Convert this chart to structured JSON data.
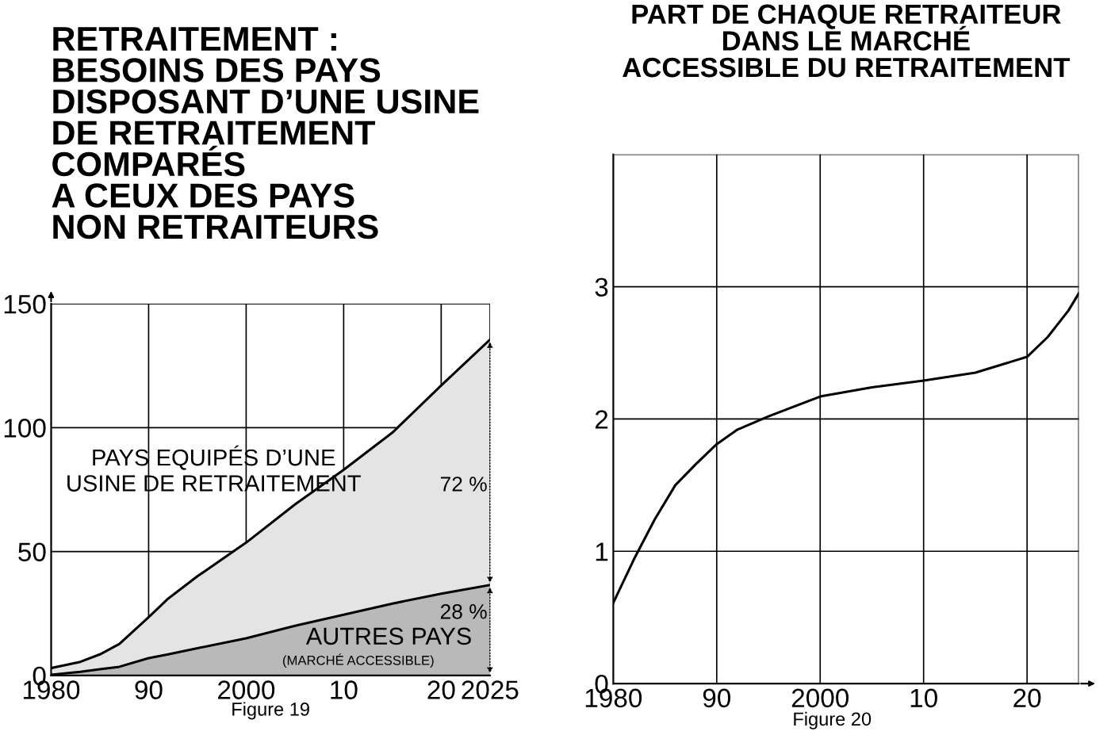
{
  "chart_data": [
    {
      "type": "area",
      "title": "RETRAITEMENT :\nBESOINS DES PAYS\nDISPOSANT D’UNE USINE\nDE RETRAITEMENT\nCOMPARÉS\nA CEUX DES PAYS\nNON RETRAITEURS",
      "x": [
        1980,
        1983,
        1985,
        1987,
        1990,
        1992,
        1995,
        2000,
        2005,
        2010,
        2015,
        2020,
        2025
      ],
      "series": [
        {
          "color": "#e4e4e4",
          "values": [
            3,
            5.5,
            8.5,
            12.7,
            23.5,
            31,
            40,
            53.6,
            69,
            83,
            98,
            117,
            135.5
          ]
        },
        {
          "color": "#b9b9b9",
          "values": [
            0.3,
            1.5,
            2.5,
            3.5,
            7,
            8.5,
            11,
            15,
            20,
            24.5,
            29,
            33,
            36.5
          ]
        }
      ],
      "xlim": [
        1980,
        2025
      ],
      "ylim": [
        0,
        150
      ],
      "xticks": [
        {
          "value": 1980,
          "label": "1980"
        },
        {
          "value": 1990,
          "label": "90"
        },
        {
          "value": 2000,
          "label": "2000"
        },
        {
          "value": 2010,
          "label": "10"
        },
        {
          "value": 2020,
          "label": "20"
        },
        {
          "value": 2025,
          "label": "2025"
        }
      ],
      "yticks": [
        0,
        50,
        100,
        150
      ],
      "grid": true,
      "annotations": [
        "PAYS EQUIPÉS D’UNE\nUSINE DE RETRAITEMENT",
        "72 %",
        "28 %",
        "AUTRES PAYS",
        "(MARCHÉ ACCESSIBLE)",
        "Figure 19"
      ]
    },
    {
      "type": "line",
      "title": "PART DE CHAQUE RETRAITEUR\nDANS LE MARCHÉ\nACCESSIBLE DU RETRAITEMENT",
      "x": [
        1980,
        1982,
        1984,
        1986,
        1988,
        1990,
        1992,
        1995,
        2000,
        2005,
        2010,
        2015,
        2020,
        2022,
        2024,
        2025
      ],
      "series": [
        {
          "color": "#000000",
          "values": [
            0.61,
            0.94,
            1.24,
            1.5,
            1.66,
            1.81,
            1.92,
            2.02,
            2.17,
            2.24,
            2.29,
            2.35,
            2.47,
            2.62,
            2.82,
            2.95
          ]
        }
      ],
      "xlim": [
        1980,
        2025
      ],
      "ylim": [
        0,
        4
      ],
      "xticks": [
        {
          "value": 1980,
          "label": "1980"
        },
        {
          "value": 1990,
          "label": "90"
        },
        {
          "value": 2000,
          "label": "2000"
        },
        {
          "value": 2010,
          "label": "10"
        },
        {
          "value": 2020,
          "label": "20"
        },
        {
          "value": 2025,
          "label": null
        }
      ],
      "yticks": [
        0,
        1,
        2,
        3,
        {
          "value": 4,
          "label": null
        }
      ],
      "grid": true,
      "annotations": [
        "Figure 20"
      ]
    }
  ]
}
